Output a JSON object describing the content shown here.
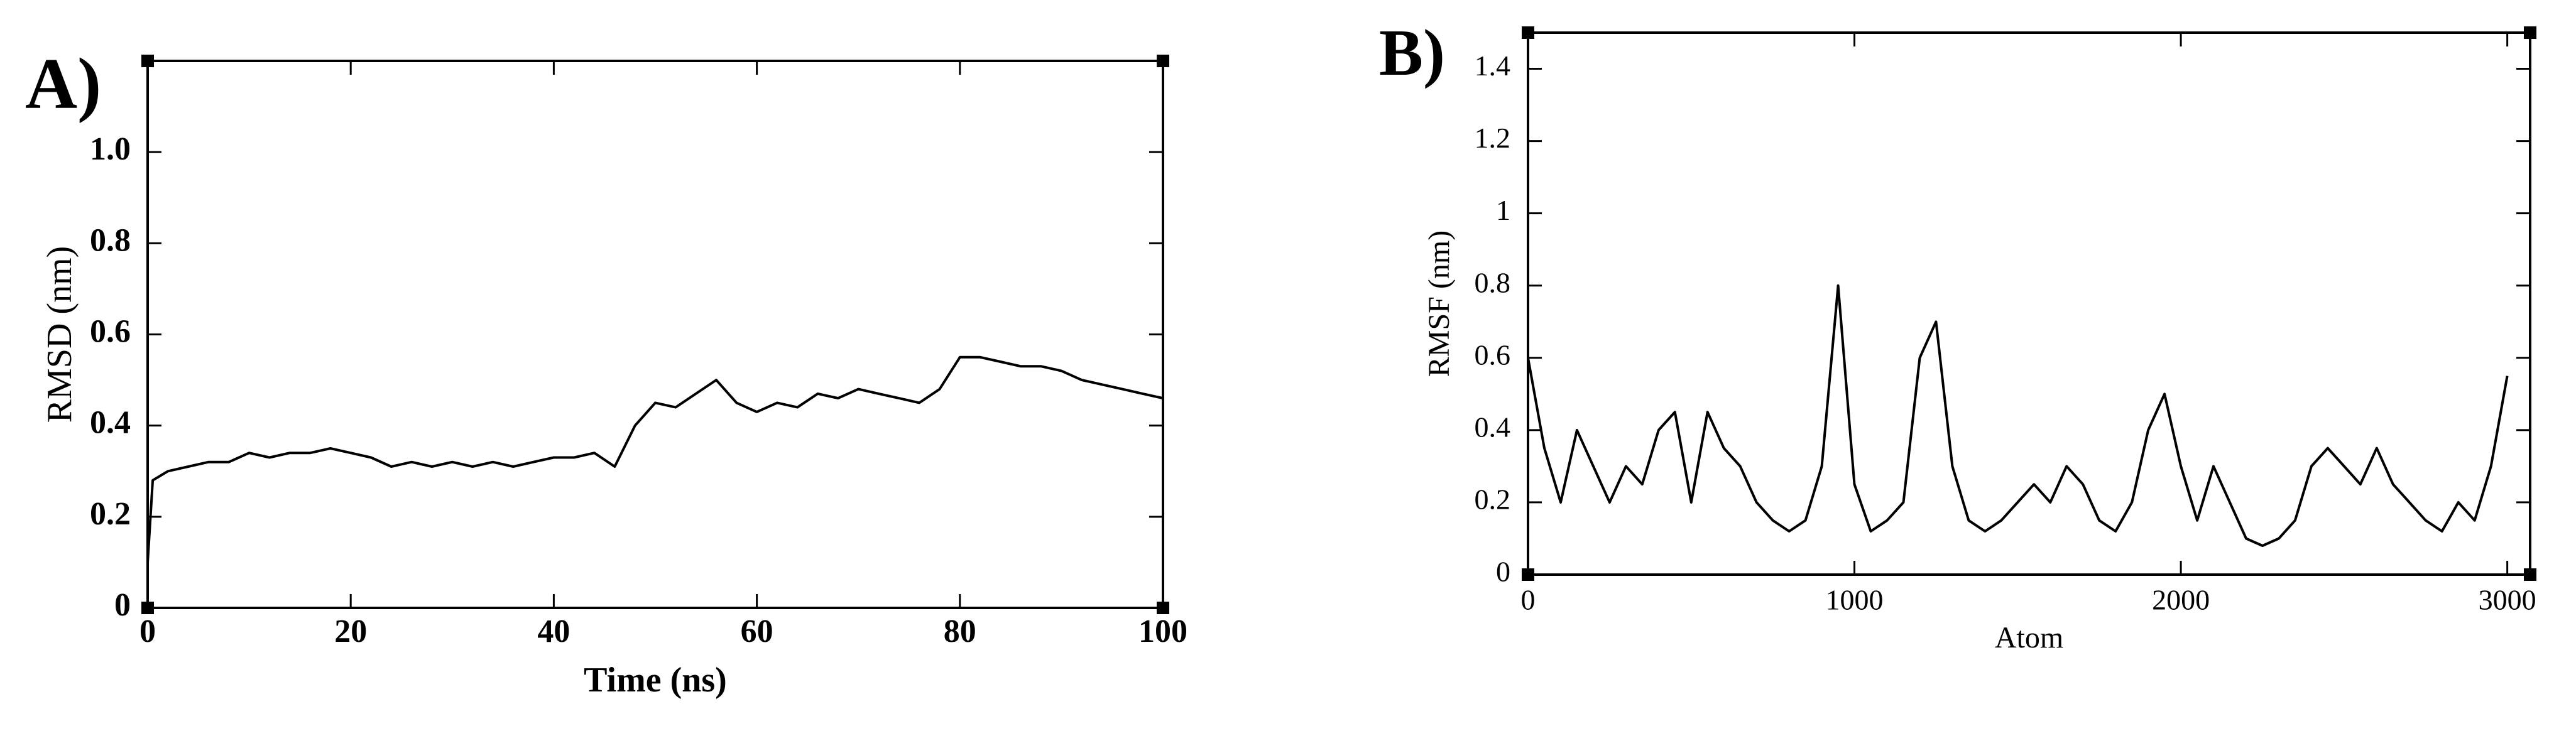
{
  "chart_data": [
    {
      "type": "line",
      "panel_label": "A)",
      "x_label": "Time (ns)",
      "y_label": "RMSD (nm)",
      "x": [
        0,
        0.5,
        2,
        4,
        6,
        8,
        10,
        12,
        14,
        16,
        18,
        20,
        22,
        24,
        26,
        28,
        30,
        32,
        34,
        36,
        38,
        40,
        42,
        44,
        46,
        48,
        50,
        52,
        54,
        56,
        58,
        60,
        62,
        64,
        66,
        68,
        70,
        72,
        74,
        76,
        78,
        80,
        82,
        84,
        86,
        88,
        90,
        92,
        94,
        96,
        98,
        100
      ],
      "values": [
        0.1,
        0.28,
        0.3,
        0.31,
        0.32,
        0.32,
        0.34,
        0.33,
        0.34,
        0.34,
        0.35,
        0.34,
        0.33,
        0.31,
        0.32,
        0.31,
        0.32,
        0.31,
        0.32,
        0.31,
        0.32,
        0.33,
        0.33,
        0.34,
        0.31,
        0.4,
        0.45,
        0.44,
        0.47,
        0.5,
        0.45,
        0.43,
        0.45,
        0.44,
        0.47,
        0.46,
        0.48,
        0.47,
        0.46,
        0.45,
        0.48,
        0.55,
        0.55,
        0.54,
        0.53,
        0.53,
        0.52,
        0.5,
        0.49,
        0.48,
        0.47,
        0.46
      ],
      "color": "#000000",
      "xlim": [
        0,
        100
      ],
      "xticks": [
        0,
        20,
        40,
        60,
        80,
        100
      ],
      "ylim": [
        0,
        1.2
      ],
      "yticks": [
        0,
        0.2,
        0.4,
        0.6,
        0.8,
        {
          "value": 1,
          "label": "1.0"
        }
      ]
    },
    {
      "type": "line",
      "panel_label": "B)",
      "x_label": "Atom",
      "y_label": "RMSF (nm)",
      "x": [
        0,
        50,
        100,
        150,
        200,
        250,
        300,
        350,
        400,
        450,
        500,
        550,
        600,
        650,
        700,
        750,
        800,
        850,
        900,
        950,
        1000,
        1050,
        1100,
        1150,
        1200,
        1250,
        1300,
        1350,
        1400,
        1450,
        1500,
        1550,
        1600,
        1650,
        1700,
        1750,
        1800,
        1850,
        1900,
        1950,
        2000,
        2050,
        2100,
        2150,
        2200,
        2250,
        2300,
        2350,
        2400,
        2450,
        2500,
        2550,
        2600,
        2650,
        2700,
        2750,
        2800,
        2850,
        2900,
        2950,
        3000
      ],
      "values": [
        0.6,
        0.35,
        0.2,
        0.4,
        0.3,
        0.2,
        0.3,
        0.25,
        0.4,
        0.45,
        0.2,
        0.45,
        0.35,
        0.3,
        0.2,
        0.15,
        0.12,
        0.15,
        0.3,
        0.8,
        0.25,
        0.12,
        0.15,
        0.2,
        0.6,
        0.7,
        0.3,
        0.15,
        0.12,
        0.15,
        0.2,
        0.25,
        0.2,
        0.3,
        0.25,
        0.15,
        0.12,
        0.2,
        0.4,
        0.5,
        0.3,
        0.15,
        0.3,
        0.2,
        0.1,
        0.08,
        0.1,
        0.15,
        0.3,
        0.35,
        0.3,
        0.25,
        0.35,
        0.25,
        0.2,
        0.15,
        0.12,
        0.2,
        0.15,
        0.3,
        0.55
      ],
      "color": "#000000",
      "xlim": [
        0,
        3070
      ],
      "xticks": [
        0,
        1000,
        2000,
        3000
      ],
      "ylim": [
        0,
        1.5
      ],
      "yticks": [
        0,
        0.2,
        0.4,
        0.6,
        0.8,
        1,
        1.2,
        1.4
      ]
    }
  ]
}
